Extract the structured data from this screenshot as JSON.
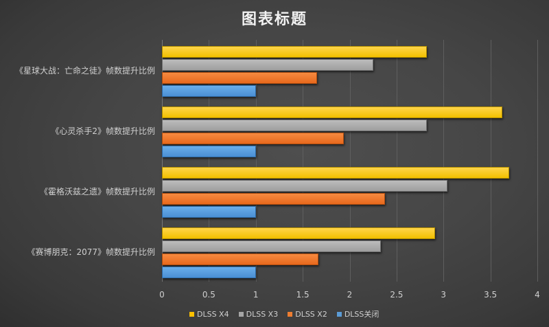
{
  "chart_data": {
    "type": "bar",
    "orientation": "horizontal",
    "title": "图表标题",
    "xlabel": "",
    "ylabel": "",
    "xlim": [
      0,
      4
    ],
    "x_ticks": [
      "0",
      "0.5",
      "1",
      "1.5",
      "2",
      "2.5",
      "3",
      "3.5",
      "4"
    ],
    "grid": true,
    "legend_position": "bottom",
    "categories": [
      "《星球大战：亡命之徒》帧数提升比例",
      "《心灵杀手2》帧数提升比例",
      "《霍格沃兹之遗》帧数提升比例",
      "《赛博朋克：2077》帧数提升比例"
    ],
    "series": [
      {
        "name": "DLSS X4",
        "color": "#FFC000",
        "values": [
          2.82,
          3.63,
          3.7,
          2.91
        ]
      },
      {
        "name": "DLSS X3",
        "color": "#A5A5A5",
        "values": [
          2.25,
          2.82,
          3.04,
          2.33
        ]
      },
      {
        "name": "DLSS X2",
        "color": "#ED7D31",
        "values": [
          1.65,
          1.94,
          2.38,
          1.67
        ]
      },
      {
        "name": "DLSS关闭",
        "color": "#5B9BD5",
        "values": [
          1.0,
          1.0,
          1.0,
          1.0
        ]
      }
    ]
  }
}
